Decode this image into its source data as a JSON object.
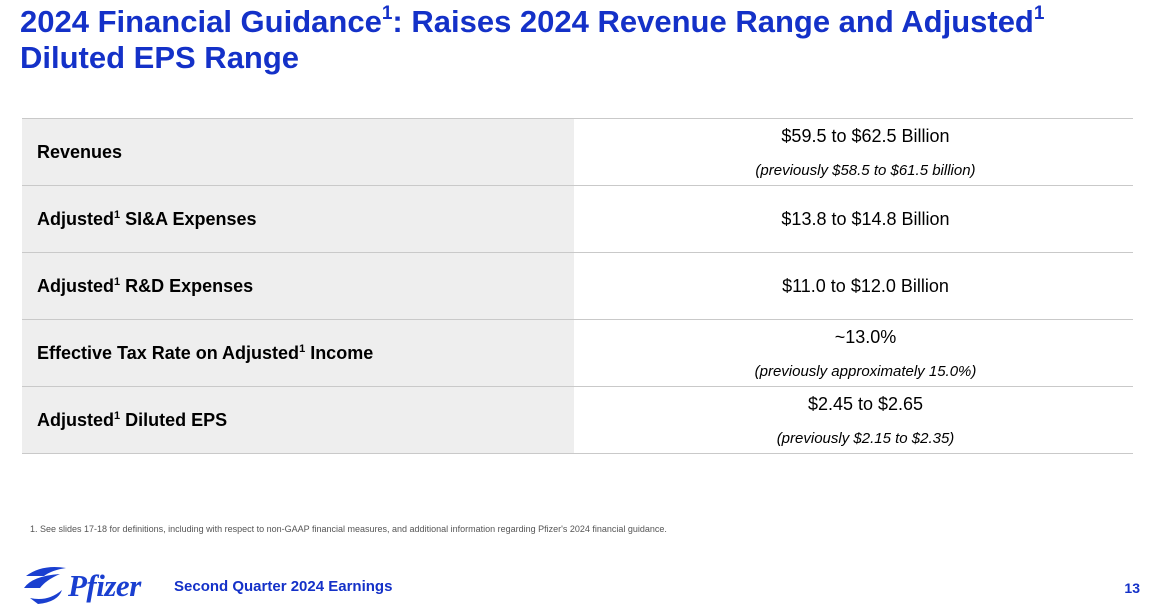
{
  "title": {
    "part1": "2024 Financial Guidance",
    "sup1": "1",
    "part2": ": Raises 2024 Revenue Range and Adjusted",
    "sup2": "1",
    "part3": " Diluted EPS Range"
  },
  "rows": [
    {
      "pre": "Revenues",
      "sup": "",
      "post": "",
      "value": "$59.5 to $62.5 Billion",
      "note": "(previously $58.5 to $61.5 billion)"
    },
    {
      "pre": "Adjusted",
      "sup": "1",
      "post": " SI&A Expenses",
      "value": "$13.8 to $14.8 Billion",
      "note": ""
    },
    {
      "pre": "Adjusted",
      "sup": "1",
      "post": " R&D Expenses",
      "value": "$11.0 to $12.0 Billion",
      "note": ""
    },
    {
      "pre": "Effective Tax Rate on Adjusted",
      "sup": "1",
      "post": " Income",
      "value": "~13.0%",
      "note": "(previously approximately 15.0%)"
    },
    {
      "pre": "Adjusted",
      "sup": "1",
      "post": " Diluted EPS",
      "value": "$2.45 to $2.65",
      "note": "(previously $2.15 to $2.35)"
    }
  ],
  "footnote": "1. See slides 17-18 for definitions, including with respect to non-GAAP financial measures, and additional information regarding Pfizer's 2024 financial guidance.",
  "footer": {
    "logo_text": "Pfizer",
    "caption": "Second Quarter 2024 Earnings",
    "page": "13"
  },
  "colors": {
    "brand_blue": "#1431c8",
    "row_label_bg": "#eeeeee"
  }
}
